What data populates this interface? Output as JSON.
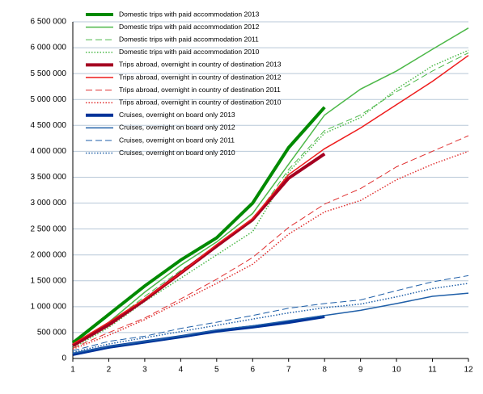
{
  "chart_data": {
    "type": "line",
    "x": [
      1,
      2,
      3,
      4,
      5,
      6,
      7,
      8,
      9,
      10,
      11,
      12
    ],
    "xlim": [
      1,
      12
    ],
    "xticks": [
      1,
      2,
      3,
      4,
      5,
      6,
      7,
      8,
      9,
      10,
      11,
      12
    ],
    "ylim": [
      0,
      6500000
    ],
    "yticks": [
      0,
      {
        "value": 500000,
        "label": "500 000"
      },
      {
        "value": 1000000,
        "label": "1 000 000"
      },
      {
        "value": 1500000,
        "label": "1 500 000"
      },
      {
        "value": 2000000,
        "label": "2 000 000"
      },
      {
        "value": 2500000,
        "label": "2 500 000"
      },
      {
        "value": 3000000,
        "label": "3 000 000"
      },
      {
        "value": 3500000,
        "label": "3 500 000"
      },
      {
        "value": 4000000,
        "label": "4 000 000"
      },
      {
        "value": 4500000,
        "label": "4 500 000"
      },
      {
        "value": 5000000,
        "label": "5 000 000"
      },
      {
        "value": 5500000,
        "label": "5 500 000"
      },
      {
        "value": 6000000,
        "label": "6 000 000"
      },
      {
        "value": 6500000,
        "label": "6 500 000"
      }
    ],
    "grid": true,
    "legend": "top-left",
    "series": [
      {
        "name": "Domestic trips with paid accommodation 2013",
        "color": "#008a00",
        "line_style": "solid",
        "line_width": 4,
        "values": [
          300000,
          850000,
          1400000,
          1900000,
          2330000,
          3000000,
          4070000,
          4850000,
          null,
          null,
          null,
          null
        ]
      },
      {
        "name": "Domestic trips with paid accommodation 2012",
        "color": "#4cb848",
        "line_style": "solid",
        "line_width": 1.5,
        "values": [
          250000,
          700000,
          1280000,
          1800000,
          2250000,
          2800000,
          3750000,
          4700000,
          5200000,
          5550000,
          5970000,
          6380000
        ]
      },
      {
        "name": "Domestic trips with paid accommodation 2011",
        "color": "#4cb848",
        "line_style": "dashed",
        "line_width": 1,
        "values": [
          230000,
          650000,
          1200000,
          1700000,
          2150000,
          2650000,
          3650000,
          4400000,
          4700000,
          5150000,
          5550000,
          5900000
        ]
      },
      {
        "name": "Domestic trips with paid accommodation 2010",
        "color": "#4cb848",
        "line_style": "dotted",
        "line_width": 1.5,
        "values": [
          200000,
          600000,
          1100000,
          1550000,
          2000000,
          2450000,
          3600000,
          4350000,
          4650000,
          5200000,
          5650000,
          5950000
        ]
      },
      {
        "name": "Trips abroad,  overnight in country of destination 2013",
        "color": "#a50021",
        "line_style": "solid",
        "line_width": 4,
        "values": [
          250000,
          650000,
          1130000,
          1650000,
          2170000,
          2680000,
          3480000,
          3950000,
          null,
          null,
          null,
          null
        ]
      },
      {
        "name": "Trips abroad,  overnight in country of destination 2012",
        "color": "#ee1c1c",
        "line_style": "solid",
        "line_width": 1.5,
        "values": [
          280000,
          700000,
          1150000,
          1650000,
          2200000,
          2700000,
          3550000,
          4050000,
          4450000,
          4900000,
          5350000,
          5850000
        ]
      },
      {
        "name": "Trips abroad,  overnight in country of destination 2011",
        "color": "#e03030",
        "line_style": "dashed",
        "line_width": 1,
        "values": [
          200000,
          500000,
          780000,
          1150000,
          1530000,
          1950000,
          2530000,
          2980000,
          3280000,
          3700000,
          4000000,
          4300000
        ]
      },
      {
        "name": "Trips abroad,  overnight in country of destination 2010",
        "color": "#e03030",
        "line_style": "dotted",
        "line_width": 1.5,
        "values": [
          180000,
          450000,
          750000,
          1100000,
          1450000,
          1820000,
          2400000,
          2830000,
          3050000,
          3450000,
          3750000,
          4000000
        ]
      },
      {
        "name": "Cruises, overnight on board only 2013",
        "color": "#003399",
        "line_style": "solid",
        "line_width": 4,
        "values": [
          80000,
          220000,
          320000,
          420000,
          530000,
          610000,
          700000,
          810000,
          null,
          null,
          null,
          null
        ]
      },
      {
        "name": "Cruises, overnight on board only 2012",
        "color": "#1f5fa8",
        "line_style": "solid",
        "line_width": 1.5,
        "values": [
          100000,
          230000,
          330000,
          430000,
          550000,
          630000,
          730000,
          830000,
          930000,
          1060000,
          1200000,
          1260000
        ]
      },
      {
        "name": "Cruises, overnight on board only 2011",
        "color": "#1f5fa8",
        "line_style": "dashed",
        "line_width": 1,
        "values": [
          150000,
          330000,
          430000,
          580000,
          700000,
          830000,
          970000,
          1060000,
          1130000,
          1310000,
          1480000,
          1600000
        ]
      },
      {
        "name": "Cruises, overnight on board only 2010",
        "color": "#1f5fa8",
        "line_style": "dotted",
        "line_width": 1.5,
        "values": [
          120000,
          280000,
          400000,
          520000,
          640000,
          760000,
          880000,
          980000,
          1050000,
          1190000,
          1350000,
          1450000
        ]
      }
    ]
  }
}
